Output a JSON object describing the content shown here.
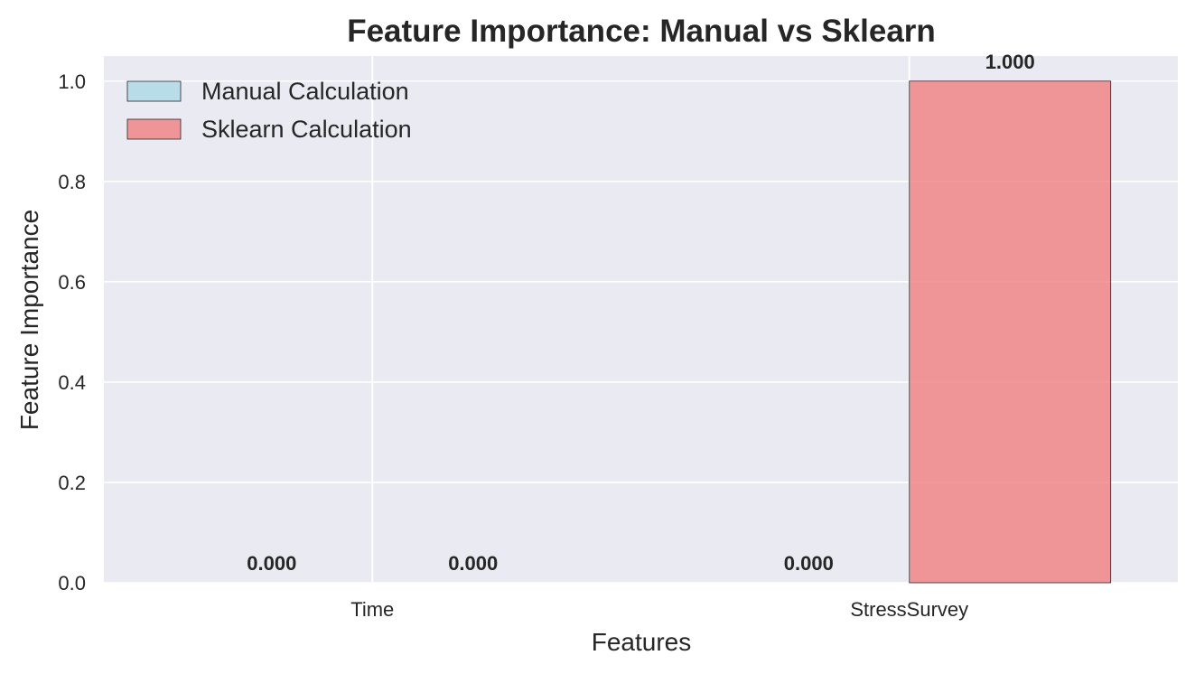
{
  "chart_data": {
    "type": "bar",
    "title": "Feature Importance: Manual vs Sklearn",
    "xlabel": "Features",
    "ylabel": "Feature Importance",
    "categories": [
      "Time",
      "StressSurvey"
    ],
    "series": [
      {
        "name": "Manual Calculation",
        "values": [
          0.0,
          0.0
        ],
        "color": "#add8e6",
        "data_labels": [
          "0.000",
          "0.000"
        ]
      },
      {
        "name": "Sklearn Calculation",
        "values": [
          0.0,
          1.0
        ],
        "color": "#f08080",
        "data_labels": [
          "0.000",
          "1.000"
        ]
      }
    ],
    "ylim": [
      0,
      1.05
    ],
    "yticks": [
      "0.0",
      "0.2",
      "0.4",
      "0.6",
      "0.8",
      "1.0"
    ],
    "grid": true,
    "legend": "top-left",
    "colors": {
      "plot_background": "#eaeaf2",
      "grid": "#ffffff",
      "text": "#262626",
      "bar_edge": "#262626"
    }
  }
}
